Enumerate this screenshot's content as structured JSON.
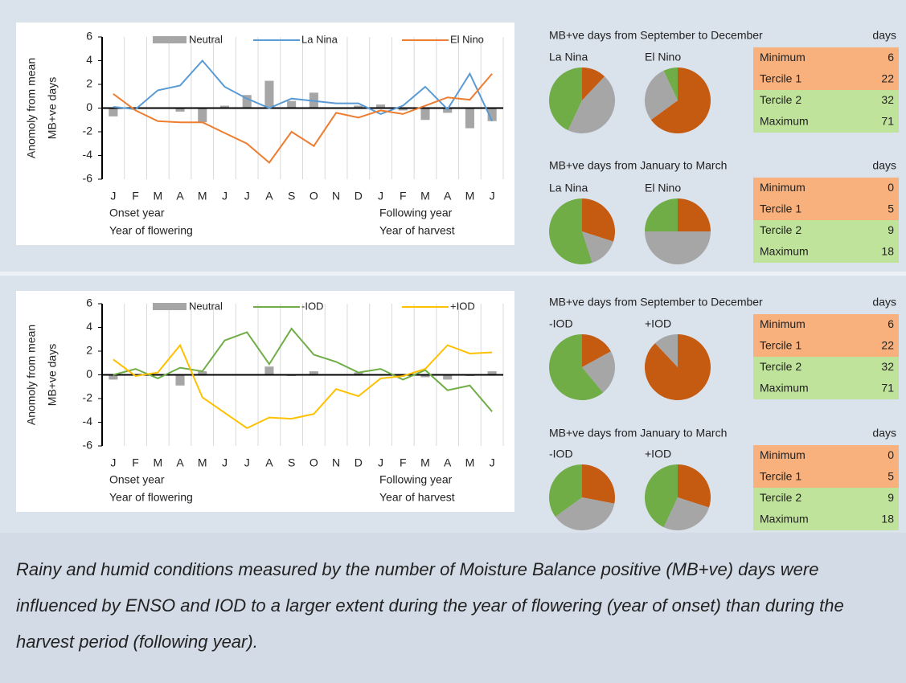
{
  "chart_data": [
    {
      "type": "combo",
      "categories": [
        "J",
        "F",
        "M",
        "A",
        "M",
        "J",
        "J",
        "A",
        "S",
        "O",
        "N",
        "D",
        "J",
        "F",
        "M",
        "A",
        "M",
        "J"
      ],
      "series": [
        {
          "name": "Neutral",
          "type": "bar",
          "color": "#a6a6a6",
          "values": [
            -0.7,
            0,
            0,
            -0.3,
            -1.2,
            0.2,
            1.1,
            2.3,
            0.6,
            1.3,
            0,
            0.2,
            0.3,
            -0.2,
            -1.0,
            -0.4,
            -1.7,
            -1.1
          ]
        },
        {
          "name": "La Nina",
          "type": "line",
          "color": "#5b9bd5",
          "values": [
            0.1,
            -0.1,
            1.5,
            1.9,
            4.0,
            1.8,
            0.8,
            0,
            0.8,
            0.6,
            0.4,
            0.4,
            -0.5,
            0.2,
            1.8,
            -0.1,
            2.9,
            -1.1
          ]
        },
        {
          "name": "El Nino",
          "type": "line",
          "color": "#ed7d31",
          "values": [
            1.2,
            -0.2,
            -1.1,
            -1.2,
            -1.2,
            -2.1,
            -3.0,
            -4.6,
            -2.0,
            -3.2,
            -0.4,
            -0.8,
            -0.2,
            -0.5,
            0.2,
            0.9,
            0.7,
            2.9
          ]
        }
      ],
      "ylabel": [
        "Anomoly from mean",
        "MB+ve days"
      ],
      "annotations": [
        "Onset year",
        "Following year",
        "Year of flowering",
        "Year of harvest"
      ],
      "ylim": [
        -6,
        6
      ],
      "yticks": [
        -6,
        -4,
        -2,
        0,
        2,
        4,
        6
      ],
      "grid": true
    },
    {
      "type": "combo",
      "categories": [
        "J",
        "F",
        "M",
        "A",
        "M",
        "J",
        "J",
        "A",
        "S",
        "O",
        "N",
        "D",
        "J",
        "F",
        "M",
        "A",
        "M",
        "J"
      ],
      "series": [
        {
          "name": "Neutral",
          "type": "bar",
          "color": "#a6a6a6",
          "values": [
            -0.4,
            0,
            0,
            -0.9,
            0.3,
            0,
            0,
            0.7,
            -0.1,
            0.3,
            0,
            0.2,
            0,
            0,
            -0.2,
            -0.4,
            -0.1,
            0.3
          ]
        },
        {
          "name": "-IOD",
          "type": "line",
          "color": "#70ad47",
          "values": [
            0,
            0.5,
            -0.3,
            0.6,
            0.3,
            2.9,
            3.6,
            0.9,
            3.9,
            1.7,
            1.1,
            0.2,
            0.5,
            -0.4,
            0.4,
            -1.3,
            -0.9,
            -3.1
          ]
        },
        {
          "name": "+IOD",
          "type": "line",
          "color": "#ffc000",
          "values": [
            1.3,
            -0.1,
            0.2,
            2.5,
            -1.9,
            -3.2,
            -4.5,
            -3.6,
            -3.7,
            -3.3,
            -1.2,
            -1.8,
            -0.3,
            -0.1,
            0.5,
            2.5,
            1.8,
            1.9
          ]
        }
      ],
      "ylabel": [
        "Anomoly from mean",
        "MB+ve days"
      ],
      "annotations": [
        "Onset year",
        "Following year",
        "Year of flowering",
        "Year of harvest"
      ],
      "ylim": [
        -6,
        6
      ],
      "yticks": [
        -6,
        -4,
        -2,
        0,
        2,
        4,
        6
      ],
      "grid": true
    },
    {
      "type": "pie",
      "title": "La Nina",
      "values": [
        12,
        45,
        43
      ],
      "colors": [
        "#c55a11",
        "#a6a6a6",
        "#70ad47"
      ]
    },
    {
      "type": "pie",
      "title": "El Nino",
      "values": [
        65,
        28,
        7
      ],
      "colors": [
        "#c55a11",
        "#a6a6a6",
        "#70ad47"
      ]
    },
    {
      "type": "pie",
      "title": "La Nina",
      "values": [
        30,
        15,
        55
      ],
      "colors": [
        "#c55a11",
        "#a6a6a6",
        "#70ad47"
      ]
    },
    {
      "type": "pie",
      "title": "El Nino",
      "values": [
        25,
        50,
        25
      ],
      "colors": [
        "#c55a11",
        "#a6a6a6",
        "#70ad47"
      ]
    },
    {
      "type": "pie",
      "title": "-IOD",
      "values": [
        17,
        22,
        61
      ],
      "colors": [
        "#c55a11",
        "#a6a6a6",
        "#70ad47"
      ]
    },
    {
      "type": "pie",
      "title": "+IOD",
      "values": [
        88,
        12,
        0
      ],
      "colors": [
        "#c55a11",
        "#a6a6a6",
        "#70ad47"
      ]
    },
    {
      "type": "pie",
      "title": "-IOD",
      "values": [
        28,
        37,
        35
      ],
      "colors": [
        "#c55a11",
        "#a6a6a6",
        "#70ad47"
      ]
    },
    {
      "type": "pie",
      "title": "+IOD",
      "values": [
        30,
        27,
        43
      ],
      "colors": [
        "#c55a11",
        "#a6a6a6",
        "#70ad47"
      ]
    }
  ],
  "tables": [
    {
      "title": "MB+ve days from September to December",
      "unit": "days",
      "rows": [
        {
          "label": "Minimum",
          "value": 6,
          "color": "#f8b07c"
        },
        {
          "label": "Tercile 1",
          "value": 22,
          "color": "#f8b07c"
        },
        {
          "label": "Tercile 2",
          "value": 32,
          "color": "#bfe39a"
        },
        {
          "label": "Maximum",
          "value": 71,
          "color": "#bfe39a"
        }
      ]
    },
    {
      "title": "MB+ve days from January to March",
      "unit": "days",
      "rows": [
        {
          "label": "Minimum",
          "value": 0,
          "color": "#f8b07c"
        },
        {
          "label": "Tercile 1",
          "value": 5,
          "color": "#f8b07c"
        },
        {
          "label": "Tercile 2",
          "value": 9,
          "color": "#bfe39a"
        },
        {
          "label": "Maximum",
          "value": 18,
          "color": "#bfe39a"
        }
      ]
    },
    {
      "title": "MB+ve days from September to December",
      "unit": "days",
      "rows": [
        {
          "label": "Minimum",
          "value": 6,
          "color": "#f8b07c"
        },
        {
          "label": "Tercile 1",
          "value": 22,
          "color": "#f8b07c"
        },
        {
          "label": "Tercile 2",
          "value": 32,
          "color": "#bfe39a"
        },
        {
          "label": "Maximum",
          "value": 71,
          "color": "#bfe39a"
        }
      ]
    },
    {
      "title": "MB+ve days from January to March",
      "unit": "days",
      "rows": [
        {
          "label": "Minimum",
          "value": 0,
          "color": "#f8b07c"
        },
        {
          "label": "Tercile 1",
          "value": 5,
          "color": "#f8b07c"
        },
        {
          "label": "Tercile 2",
          "value": 9,
          "color": "#bfe39a"
        },
        {
          "label": "Maximum",
          "value": 18,
          "color": "#bfe39a"
        }
      ]
    }
  ],
  "caption": "Rainy and humid conditions measured by the number of Moisture Balance positive (MB+ve) days were influenced by ENSO and IOD to a larger extent during the year of flowering (year of onset) than during the harvest period (following year)."
}
